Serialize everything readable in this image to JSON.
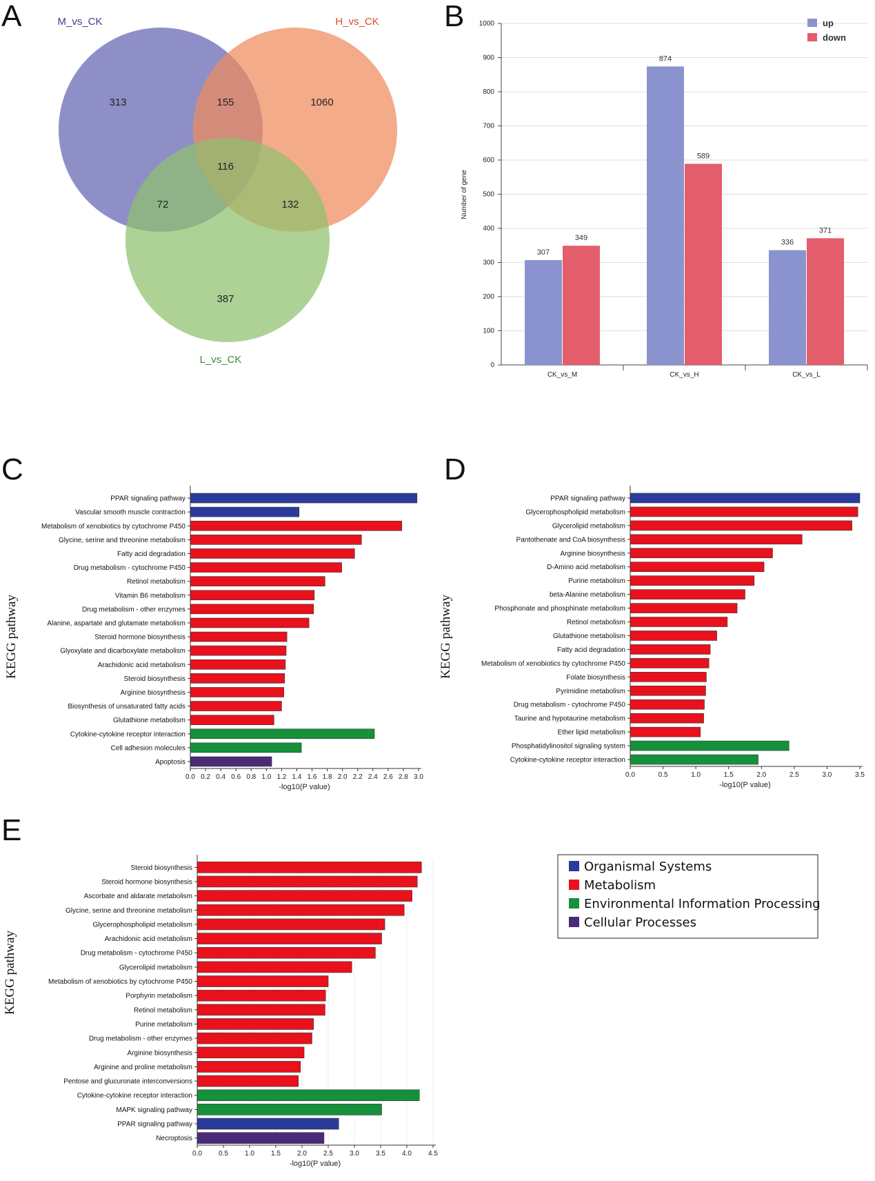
{
  "panels": {
    "A": "A",
    "B": "B",
    "C": "C",
    "D": "D",
    "E": "E"
  },
  "colors": {
    "venn_M": "#6f6fb8",
    "venn_H": "#ef8a5c",
    "venn_L": "#8fbf6e",
    "up": "#8b93cf",
    "down": "#e35d6a",
    "organismal_systems": "#2b3b9c",
    "metabolism": "#e8111c",
    "environmental_information_processing": "#14913a",
    "cellular_processes": "#4b2a78"
  },
  "venn": {
    "sets": [
      {
        "key": "M",
        "label": "M_vs_CK",
        "color": "#3e3e96"
      },
      {
        "key": "H",
        "label": "H_vs_CK",
        "color": "#e0452a"
      },
      {
        "key": "L",
        "label": "L_vs_CK",
        "color": "#3e8a3e"
      }
    ],
    "regions": {
      "M_only": "313",
      "H_only": "1060",
      "L_only": "387",
      "M_H": "155",
      "M_L": "72",
      "H_L": "132",
      "M_H_L": "116"
    }
  },
  "legend_kegg": {
    "items": [
      {
        "key": "organismal_systems",
        "label": "Organismal Systems"
      },
      {
        "key": "metabolism",
        "label": "Metabolism"
      },
      {
        "key": "environmental_information_processing",
        "label": "Environmental Information Processing"
      },
      {
        "key": "cellular_processes",
        "label": "Cellular Processes"
      }
    ]
  },
  "chart_data": [
    {
      "panel": "B",
      "type": "bar",
      "categories": [
        "CK_vs_M",
        "CK_vs_H",
        "CK_vs_L"
      ],
      "series": [
        {
          "name": "up",
          "values": [
            307,
            874,
            336
          ]
        },
        {
          "name": "down",
          "values": [
            349,
            589,
            371
          ]
        }
      ],
      "ylabel": "Number of gene",
      "xlabel": "",
      "ylim": [
        0,
        1000
      ],
      "yticks": [
        0,
        100,
        200,
        300,
        400,
        500,
        600,
        700,
        800,
        900,
        1000
      ],
      "legend": "top-right"
    },
    {
      "panel": "C",
      "type": "bar",
      "orientation": "horizontal",
      "ylabel": "KEGG pathway",
      "xlabel": "-log10(P value)",
      "xlim": [
        0,
        3.0
      ],
      "xticks": [
        "0.0",
        "0.2",
        "0.4",
        "0.6",
        "0.8",
        "1.0",
        "1.2",
        "1.4",
        "1.6",
        "1.8",
        "2.0",
        "2.2",
        "2.4",
        "2.6",
        "2.8",
        "3.0"
      ],
      "bars": [
        {
          "label": "PPAR signaling pathway",
          "value": 2.98,
          "category": "organismal_systems"
        },
        {
          "label": "Vascular smooth muscle contraction",
          "value": 1.43,
          "category": "organismal_systems"
        },
        {
          "label": "Metabolism of xenobiotics by cytochrome P450",
          "value": 2.78,
          "category": "metabolism"
        },
        {
          "label": "Glycine, serine and threonine metabolism",
          "value": 2.25,
          "category": "metabolism"
        },
        {
          "label": "Fatty acid degradation",
          "value": 2.16,
          "category": "metabolism"
        },
        {
          "label": "Drug metabolism - cytochrome P450",
          "value": 1.99,
          "category": "metabolism"
        },
        {
          "label": "Retinol metabolism",
          "value": 1.77,
          "category": "metabolism"
        },
        {
          "label": "Vitamin B6 metabolism",
          "value": 1.63,
          "category": "metabolism"
        },
        {
          "label": "Drug metabolism - other enzymes",
          "value": 1.62,
          "category": "metabolism"
        },
        {
          "label": "Alanine, aspartate and glutamate metabolism",
          "value": 1.56,
          "category": "metabolism"
        },
        {
          "label": "Steroid hormone biosynthesis",
          "value": 1.27,
          "category": "metabolism"
        },
        {
          "label": "Glyoxylate and dicarboxylate metabolism",
          "value": 1.26,
          "category": "metabolism"
        },
        {
          "label": "Arachidonic acid metabolism",
          "value": 1.25,
          "category": "metabolism"
        },
        {
          "label": "Steroid biosynthesis",
          "value": 1.24,
          "category": "metabolism"
        },
        {
          "label": "Arginine biosynthesis",
          "value": 1.23,
          "category": "metabolism"
        },
        {
          "label": "Biosynthesis of unsaturated fatty acids",
          "value": 1.2,
          "category": "metabolism"
        },
        {
          "label": "Glutathione metabolism",
          "value": 1.1,
          "category": "metabolism"
        },
        {
          "label": "Cytokine-cytokine receptor interaction",
          "value": 2.42,
          "category": "environmental_information_processing"
        },
        {
          "label": "Cell adhesion molecules",
          "value": 1.46,
          "category": "environmental_information_processing"
        },
        {
          "label": "Apoptosis",
          "value": 1.07,
          "category": "cellular_processes"
        }
      ]
    },
    {
      "panel": "D",
      "type": "bar",
      "orientation": "horizontal",
      "ylabel": "KEGG pathway",
      "xlabel": "-log10(P value)",
      "xlim": [
        0,
        3.5
      ],
      "xticks": [
        "0.0",
        "0.5",
        "1.0",
        "1.5",
        "2.0",
        "2.5",
        "3.0",
        "3.5"
      ],
      "bars": [
        {
          "label": "PPAR signaling pathway",
          "value": 3.5,
          "category": "organismal_systems"
        },
        {
          "label": "Glycerophospholipid metabolism",
          "value": 3.47,
          "category": "metabolism"
        },
        {
          "label": "Glycerolipid metabolism",
          "value": 3.38,
          "category": "metabolism"
        },
        {
          "label": "Pantothenate and CoA biosynthesis",
          "value": 2.62,
          "category": "metabolism"
        },
        {
          "label": "Arginine biosynthesis",
          "value": 2.17,
          "category": "metabolism"
        },
        {
          "label": "D-Amino acid metabolism",
          "value": 2.04,
          "category": "metabolism"
        },
        {
          "label": "Purine metabolism",
          "value": 1.89,
          "category": "metabolism"
        },
        {
          "label": "beta-Alanine metabolism",
          "value": 1.75,
          "category": "metabolism"
        },
        {
          "label": "Phosphonate and phosphinate metabolism",
          "value": 1.63,
          "category": "metabolism"
        },
        {
          "label": "Retinol metabolism",
          "value": 1.48,
          "category": "metabolism"
        },
        {
          "label": "Glutathione metabolism",
          "value": 1.32,
          "category": "metabolism"
        },
        {
          "label": "Fatty acid degradation",
          "value": 1.22,
          "category": "metabolism"
        },
        {
          "label": "Metabolism of xenobiotics by cytochrome P450",
          "value": 1.2,
          "category": "metabolism"
        },
        {
          "label": "Folate biosynthesis",
          "value": 1.16,
          "category": "metabolism"
        },
        {
          "label": "Pyrimidine metabolism",
          "value": 1.15,
          "category": "metabolism"
        },
        {
          "label": "Drug metabolism - cytochrome P450",
          "value": 1.13,
          "category": "metabolism"
        },
        {
          "label": "Taurine and hypotaurine metabolism",
          "value": 1.12,
          "category": "metabolism"
        },
        {
          "label": "Ether lipid metabolism",
          "value": 1.07,
          "category": "metabolism"
        },
        {
          "label": "Phosphatidylinositol signaling system",
          "value": 2.42,
          "category": "environmental_information_processing"
        },
        {
          "label": "Cytokine-cytokine receptor interaction",
          "value": 1.95,
          "category": "environmental_information_processing"
        }
      ]
    },
    {
      "panel": "E",
      "type": "bar",
      "orientation": "horizontal",
      "ylabel": "KEGG pathway",
      "xlabel": "-log10(P value)",
      "xlim": [
        0,
        4.5
      ],
      "xticks": [
        "0.0",
        "0.5",
        "1.0",
        "1.5",
        "2.0",
        "2.5",
        "3.0",
        "3.5",
        "4.0",
        "4.5"
      ],
      "bars": [
        {
          "label": "Steroid biosynthesis",
          "value": 4.28,
          "category": "metabolism"
        },
        {
          "label": "Steroid hormone biosynthesis",
          "value": 4.2,
          "category": "metabolism"
        },
        {
          "label": "Ascorbate and aldarate metabolism",
          "value": 4.1,
          "category": "metabolism"
        },
        {
          "label": "Glycine, serine and threonine metabolism",
          "value": 3.95,
          "category": "metabolism"
        },
        {
          "label": "Glycerophospholipid metabolism",
          "value": 3.58,
          "category": "metabolism"
        },
        {
          "label": "Arachidonic acid metabolism",
          "value": 3.52,
          "category": "metabolism"
        },
        {
          "label": "Drug metabolism - cytochrome P450",
          "value": 3.4,
          "category": "metabolism"
        },
        {
          "label": "Glycerolipid metabolism",
          "value": 2.95,
          "category": "metabolism"
        },
        {
          "label": "Metabolism of xenobiotics by cytochrome P450",
          "value": 2.5,
          "category": "metabolism"
        },
        {
          "label": "Porphyrin metabolism",
          "value": 2.45,
          "category": "metabolism"
        },
        {
          "label": "Retinol metabolism",
          "value": 2.44,
          "category": "metabolism"
        },
        {
          "label": "Purine metabolism",
          "value": 2.22,
          "category": "metabolism"
        },
        {
          "label": "Drug metabolism - other enzymes",
          "value": 2.19,
          "category": "metabolism"
        },
        {
          "label": "Arginine biosynthesis",
          "value": 2.04,
          "category": "metabolism"
        },
        {
          "label": "Arginine and proline metabolism",
          "value": 1.97,
          "category": "metabolism"
        },
        {
          "label": "Pentose and glucuronate interconversions",
          "value": 1.93,
          "category": "metabolism"
        },
        {
          "label": "Cytokine-cytokine receptor interaction",
          "value": 4.24,
          "category": "environmental_information_processing"
        },
        {
          "label": "MAPK signaling pathway",
          "value": 3.52,
          "category": "environmental_information_processing"
        },
        {
          "label": "PPAR signaling pathway",
          "value": 2.7,
          "category": "organismal_systems"
        },
        {
          "label": "Necroptosis",
          "value": 2.42,
          "category": "cellular_processes"
        }
      ]
    }
  ]
}
